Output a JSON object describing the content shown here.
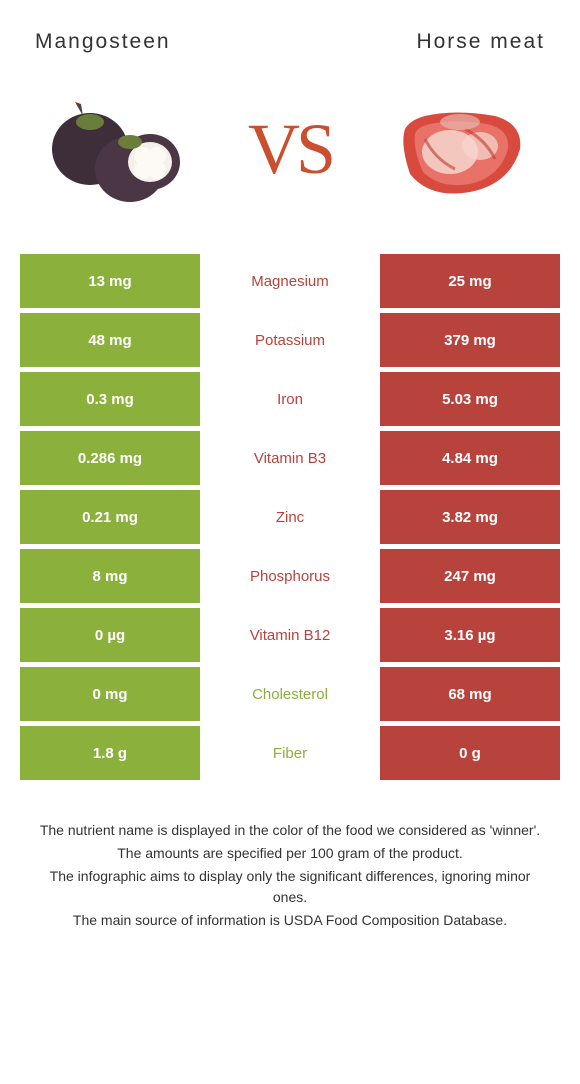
{
  "header": {
    "left_title": "Mangosteen",
    "right_title": "Horse meat"
  },
  "hero": {
    "vs": "VS"
  },
  "colors": {
    "left_bg": "#8bb13c",
    "right_bg": "#b8433d",
    "vs_color": "#c94f2f"
  },
  "rows": [
    {
      "label": "Magnesium",
      "left": "13 mg",
      "right": "25 mg",
      "winner": "right"
    },
    {
      "label": "Potassium",
      "left": "48 mg",
      "right": "379 mg",
      "winner": "right"
    },
    {
      "label": "Iron",
      "left": "0.3 mg",
      "right": "5.03 mg",
      "winner": "right"
    },
    {
      "label": "Vitamin B3",
      "left": "0.286 mg",
      "right": "4.84 mg",
      "winner": "right"
    },
    {
      "label": "Zinc",
      "left": "0.21 mg",
      "right": "3.82 mg",
      "winner": "right"
    },
    {
      "label": "Phosphorus",
      "left": "8 mg",
      "right": "247 mg",
      "winner": "right"
    },
    {
      "label": "Vitamin B12",
      "left": "0 µg",
      "right": "3.16 µg",
      "winner": "right"
    },
    {
      "label": "Cholesterol",
      "left": "0 mg",
      "right": "68 mg",
      "winner": "left"
    },
    {
      "label": "Fiber",
      "left": "1.8 g",
      "right": "0 g",
      "winner": "left"
    }
  ],
  "notes": {
    "line1": "The nutrient name is displayed in the color of the food we considered as 'winner'.",
    "line2": "The amounts are specified per 100 gram of the product.",
    "line3": "The infographic aims to display only the significant differences, ignoring minor ones.",
    "line4": "The main source of information is USDA Food Composition Database."
  }
}
